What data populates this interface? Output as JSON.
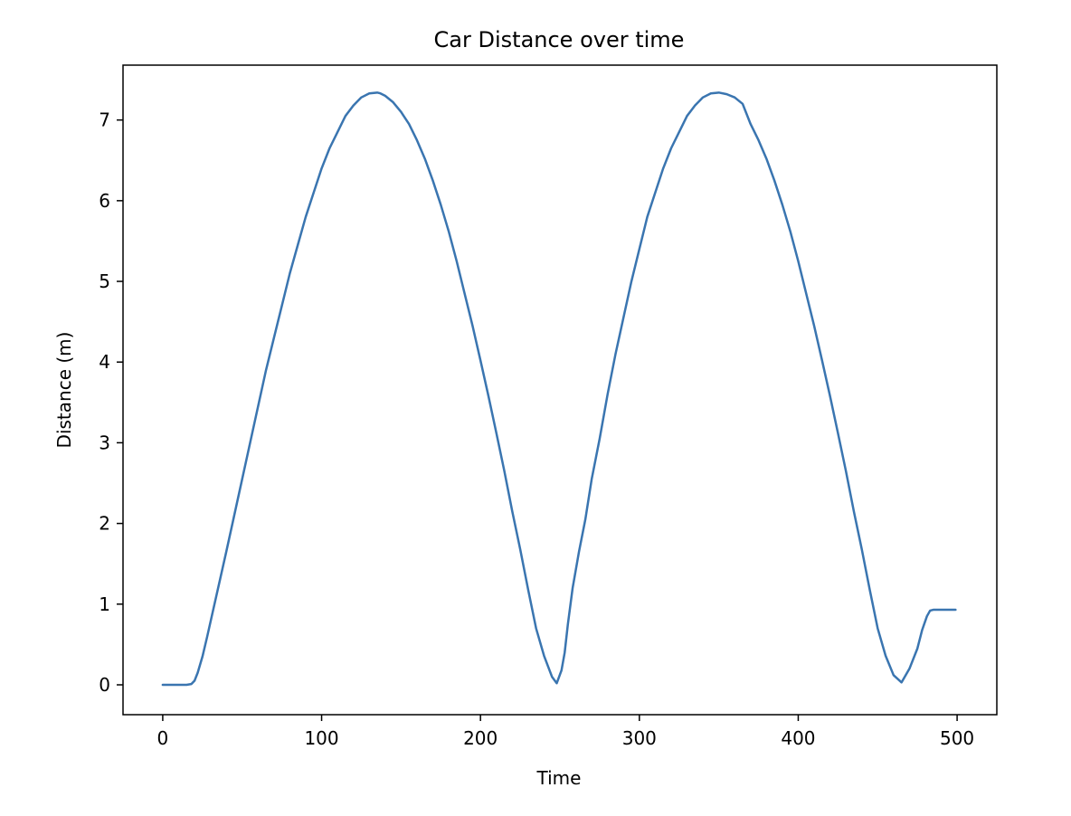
{
  "chart_data": {
    "type": "line",
    "title": "Car Distance over time",
    "xlabel": "Time",
    "ylabel": "Distance (m)",
    "xlim": [
      -25,
      525
    ],
    "ylim": [
      -0.37,
      7.68
    ],
    "x_ticks": [
      0,
      100,
      200,
      300,
      400,
      500
    ],
    "y_ticks": [
      0,
      1,
      2,
      3,
      4,
      5,
      6,
      7
    ],
    "grid": false,
    "legend": "none",
    "line_color": "#3a75b0",
    "series": [
      {
        "x": [
          0,
          5,
          10,
          15,
          18,
          20,
          22,
          25,
          28,
          32,
          36,
          40,
          45,
          50,
          55,
          60,
          65,
          70,
          75,
          80,
          85,
          90,
          95,
          100,
          105,
          110,
          115,
          120,
          125,
          130,
          135,
          137,
          140,
          145,
          150,
          155,
          160,
          165,
          170,
          175,
          180,
          185,
          190,
          195,
          200,
          205,
          210,
          215,
          220,
          225,
          230,
          235,
          240,
          245,
          248,
          251,
          253,
          255,
          258,
          262,
          266,
          270,
          275,
          280,
          285,
          290,
          295,
          300,
          305,
          310,
          315,
          320,
          325,
          330,
          335,
          340,
          345,
          350,
          355,
          360,
          365,
          367,
          370,
          375,
          380,
          385,
          390,
          395,
          400,
          405,
          410,
          415,
          420,
          425,
          430,
          435,
          440,
          445,
          450,
          455,
          460,
          465,
          470,
          475,
          478,
          481,
          483,
          485,
          487,
          489,
          491,
          493,
          495,
          497,
          499
        ],
        "y": [
          0,
          0,
          0,
          0,
          0.01,
          0.05,
          0.15,
          0.35,
          0.6,
          0.95,
          1.3,
          1.65,
          2.1,
          2.55,
          3.0,
          3.45,
          3.9,
          4.3,
          4.7,
          5.1,
          5.45,
          5.8,
          6.1,
          6.4,
          6.65,
          6.85,
          7.05,
          7.18,
          7.28,
          7.33,
          7.34,
          7.33,
          7.3,
          7.22,
          7.1,
          6.95,
          6.75,
          6.52,
          6.25,
          5.95,
          5.62,
          5.25,
          4.85,
          4.45,
          4.02,
          3.58,
          3.12,
          2.65,
          2.15,
          1.68,
          1.18,
          0.7,
          0.36,
          0.1,
          0.02,
          0.18,
          0.4,
          0.75,
          1.2,
          1.65,
          2.05,
          2.55,
          3.05,
          3.6,
          4.1,
          4.55,
          5.0,
          5.4,
          5.8,
          6.1,
          6.4,
          6.65,
          6.85,
          7.05,
          7.18,
          7.28,
          7.33,
          7.34,
          7.32,
          7.28,
          7.2,
          7.1,
          6.95,
          6.75,
          6.52,
          6.25,
          5.95,
          5.62,
          5.25,
          4.85,
          4.45,
          4.02,
          3.58,
          3.12,
          2.65,
          2.15,
          1.68,
          1.18,
          0.7,
          0.36,
          0.12,
          0.03,
          0.2,
          0.45,
          0.68,
          0.85,
          0.92,
          0.93,
          0.93,
          0.93,
          0.93,
          0.93,
          0.93,
          0.93,
          0.93
        ]
      }
    ]
  }
}
